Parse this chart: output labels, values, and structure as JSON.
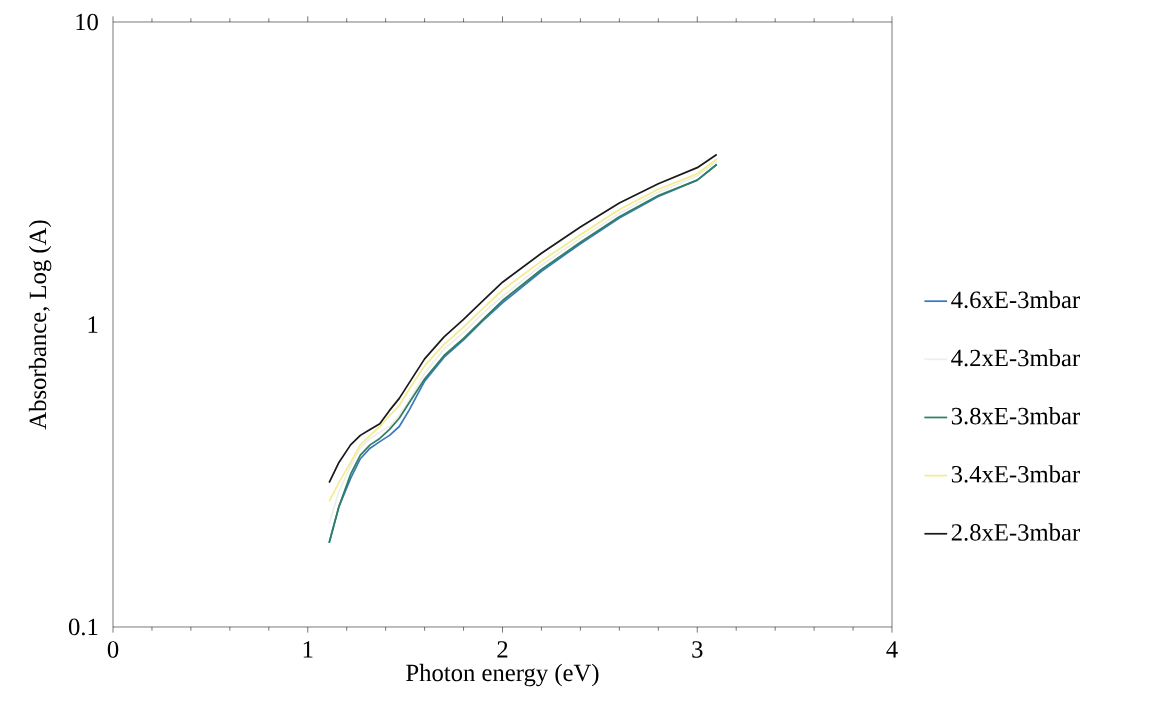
{
  "chart_data": {
    "type": "line",
    "xlabel": "Photon energy (eV)",
    "ylabel": "Absorbance, Log (A)",
    "log": "y",
    "xlim": [
      0,
      4
    ],
    "xticks": [
      0,
      1,
      2,
      3,
      4
    ],
    "ylim": [
      0.1,
      10
    ],
    "yticks": [
      0.1,
      1,
      10
    ],
    "grid": false,
    "legend": "right",
    "marker": "none",
    "line_style": "solid",
    "x": [
      1.11,
      1.16,
      1.22,
      1.27,
      1.32,
      1.37,
      1.42,
      1.47,
      1.52,
      1.6,
      1.7,
      1.8,
      1.9,
      2.0,
      2.2,
      2.4,
      2.6,
      2.8,
      3.0,
      3.1
    ],
    "series": [
      {
        "name": "4.6xE-3mbar",
        "color": "#3a78c0",
        "values": [
          0.19,
          0.25,
          0.31,
          0.36,
          0.39,
          0.41,
          0.43,
          0.46,
          0.52,
          0.65,
          0.78,
          0.89,
          1.03,
          1.18,
          1.5,
          1.85,
          2.25,
          2.65,
          3.0,
          3.38
        ]
      },
      {
        "name": "4.2xE-3mbar",
        "color": "#eeeeea",
        "values": [
          0.22,
          0.28,
          0.34,
          0.39,
          0.42,
          0.44,
          0.46,
          0.5,
          0.56,
          0.69,
          0.83,
          0.94,
          1.09,
          1.24,
          1.57,
          1.93,
          2.33,
          2.74,
          3.1,
          3.45
        ]
      },
      {
        "name": "3.8xE-3mbar",
        "color": "#2e8060",
        "values": [
          0.19,
          0.25,
          0.32,
          0.37,
          0.4,
          0.42,
          0.45,
          0.49,
          0.55,
          0.66,
          0.79,
          0.9,
          1.04,
          1.2,
          1.52,
          1.87,
          2.27,
          2.67,
          3.0,
          3.38
        ]
      },
      {
        "name": "3.4xE-3mbar",
        "color": "#f2ec90",
        "values": [
          0.26,
          0.3,
          0.35,
          0.4,
          0.43,
          0.46,
          0.5,
          0.54,
          0.61,
          0.73,
          0.86,
          0.98,
          1.13,
          1.3,
          1.62,
          1.98,
          2.4,
          2.8,
          3.15,
          3.52
        ]
      },
      {
        "name": "2.8xE-3mbar",
        "color": "#1a1a1a",
        "values": [
          0.3,
          0.35,
          0.4,
          0.43,
          0.45,
          0.47,
          0.52,
          0.57,
          0.64,
          0.77,
          0.91,
          1.04,
          1.2,
          1.38,
          1.72,
          2.1,
          2.52,
          2.92,
          3.3,
          3.65
        ]
      }
    ]
  }
}
